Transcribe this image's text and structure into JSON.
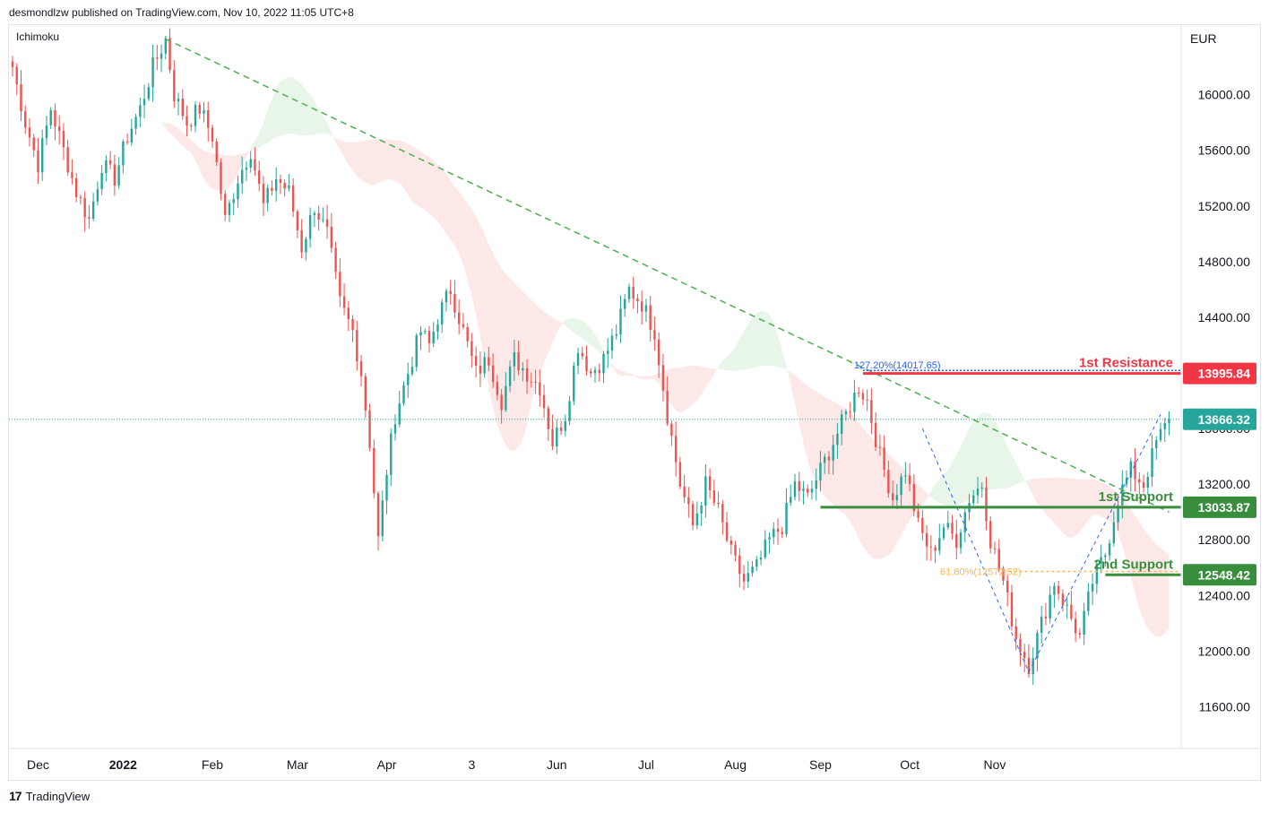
{
  "header": {
    "publisher_line": "desmondlzw published on TradingView.com, Nov 10, 2022 11:05 UTC+8"
  },
  "indicator_label": "Ichimoku",
  "footer": {
    "logo_glyph": "17",
    "brand": "TradingView"
  },
  "colors": {
    "up": "#26a69a",
    "down": "#ef5350",
    "trend": "#4caf50",
    "resistance": "#f23645",
    "support": "#388e3c",
    "fib_blue": "#2962ff",
    "fib_orange": "#ffb74d",
    "cloud_green": "#e8f5e9",
    "cloud_red": "#fde8e8"
  },
  "chart_data": {
    "type": "candlestick",
    "title": "",
    "currency_label": "EUR",
    "ylim": [
      11300,
      16500
    ],
    "y_ticks": [
      {
        "value": 16000,
        "label": "16000.00"
      },
      {
        "value": 15600,
        "label": "15600.00"
      },
      {
        "value": 15200,
        "label": "15200.00"
      },
      {
        "value": 14800,
        "label": "14800.00"
      },
      {
        "value": 14400,
        "label": "14400.00"
      },
      {
        "value": 13600,
        "label": "13600.00"
      },
      {
        "value": 13200,
        "label": "13200.00"
      },
      {
        "value": 12800,
        "label": "12800.00"
      },
      {
        "value": 12400,
        "label": "12400.00"
      },
      {
        "value": 12000,
        "label": "12000.00"
      },
      {
        "value": 11600,
        "label": "11600.00"
      }
    ],
    "x_ticks": [
      {
        "label": "Dec",
        "bold": false
      },
      {
        "label": "2022",
        "bold": true
      },
      {
        "label": "Feb",
        "bold": false
      },
      {
        "label": "Mar",
        "bold": false
      },
      {
        "label": "Apr",
        "bold": false
      },
      {
        "label": "3",
        "bold": false
      },
      {
        "label": "Jun",
        "bold": false
      },
      {
        "label": "Jul",
        "bold": false
      },
      {
        "label": "Aug",
        "bold": false
      },
      {
        "label": "Sep",
        "bold": false
      },
      {
        "label": "Oct",
        "bold": false
      },
      {
        "label": "Nov",
        "bold": false
      }
    ],
    "price_path": [
      [
        0,
        16200
      ],
      [
        3,
        15800
      ],
      [
        6,
        15500
      ],
      [
        9,
        15900
      ],
      [
        12,
        15600
      ],
      [
        15,
        15300
      ],
      [
        18,
        15100
      ],
      [
        21,
        15500
      ],
      [
        24,
        15400
      ],
      [
        27,
        15700
      ],
      [
        30,
        15900
      ],
      [
        33,
        16200
      ],
      [
        36,
        16400
      ],
      [
        38,
        16000
      ],
      [
        41,
        15800
      ],
      [
        44,
        15900
      ],
      [
        47,
        15700
      ],
      [
        50,
        15100
      ],
      [
        53,
        15400
      ],
      [
        56,
        15600
      ],
      [
        59,
        15200
      ],
      [
        62,
        15400
      ],
      [
        65,
        15300
      ],
      [
        68,
        14900
      ],
      [
        71,
        15200
      ],
      [
        74,
        15000
      ],
      [
        77,
        14500
      ],
      [
        80,
        14300
      ],
      [
        82,
        14000
      ],
      [
        84,
        13500
      ],
      [
        86,
        12800
      ],
      [
        88,
        13300
      ],
      [
        90,
        13700
      ],
      [
        92,
        13900
      ],
      [
        94,
        14100
      ],
      [
        96,
        14300
      ],
      [
        98,
        14200
      ],
      [
        100,
        14400
      ],
      [
        103,
        14600
      ],
      [
        106,
        14300
      ],
      [
        109,
        14000
      ],
      [
        112,
        14100
      ],
      [
        115,
        13800
      ],
      [
        118,
        14100
      ],
      [
        121,
        14000
      ],
      [
        124,
        13900
      ],
      [
        127,
        13500
      ],
      [
        130,
        13700
      ],
      [
        133,
        14200
      ],
      [
        136,
        14000
      ],
      [
        139,
        14100
      ],
      [
        142,
        14300
      ],
      [
        145,
        14600
      ],
      [
        148,
        14500
      ],
      [
        151,
        14300
      ],
      [
        154,
        13700
      ],
      [
        157,
        13200
      ],
      [
        160,
        12900
      ],
      [
        163,
        13200
      ],
      [
        166,
        13000
      ],
      [
        169,
        12700
      ],
      [
        172,
        12500
      ],
      [
        175,
        12600
      ],
      [
        178,
        12800
      ],
      [
        181,
        12900
      ],
      [
        184,
        13200
      ],
      [
        187,
        13100
      ],
      [
        190,
        13300
      ],
      [
        193,
        13500
      ],
      [
        196,
        13700
      ],
      [
        199,
        13900
      ],
      [
        201,
        13800
      ],
      [
        204,
        13400
      ],
      [
        207,
        13100
      ],
      [
        210,
        13300
      ],
      [
        213,
        12900
      ],
      [
        216,
        12700
      ],
      [
        219,
        12900
      ],
      [
        222,
        12800
      ],
      [
        225,
        13100
      ],
      [
        228,
        13200
      ],
      [
        230,
        12800
      ],
      [
        233,
        12500
      ],
      [
        236,
        12100
      ],
      [
        239,
        11900
      ],
      [
        242,
        12200
      ],
      [
        245,
        12500
      ],
      [
        248,
        12300
      ],
      [
        251,
        12100
      ],
      [
        254,
        12500
      ],
      [
        257,
        12700
      ],
      [
        260,
        13100
      ],
      [
        263,
        13300
      ],
      [
        266,
        13200
      ],
      [
        269,
        13500
      ],
      [
        272,
        13666
      ]
    ],
    "trendline": {
      "start": [
        36,
        16400
      ],
      "end": [
        272,
        13000
      ],
      "label": ""
    },
    "resistance": {
      "label": "1st Resistance",
      "value": 13995.84,
      "value_label": "13995.84",
      "from_x": 200
    },
    "support_1": {
      "label": "1st Support",
      "value": 13033.87,
      "value_label": "13033.87",
      "from_x": 190
    },
    "support_2": {
      "label": "2nd Support",
      "value": 12548.42,
      "value_label": "12548.42",
      "from_x": 257
    },
    "current_price": {
      "value": 13666.32,
      "value_label": "13666.32"
    },
    "fib_127": {
      "label": "127.20%(14017.65)",
      "value": 14017.65
    },
    "fib_618": {
      "label": "61.80%(12572.52)",
      "value": 12572.52
    }
  }
}
